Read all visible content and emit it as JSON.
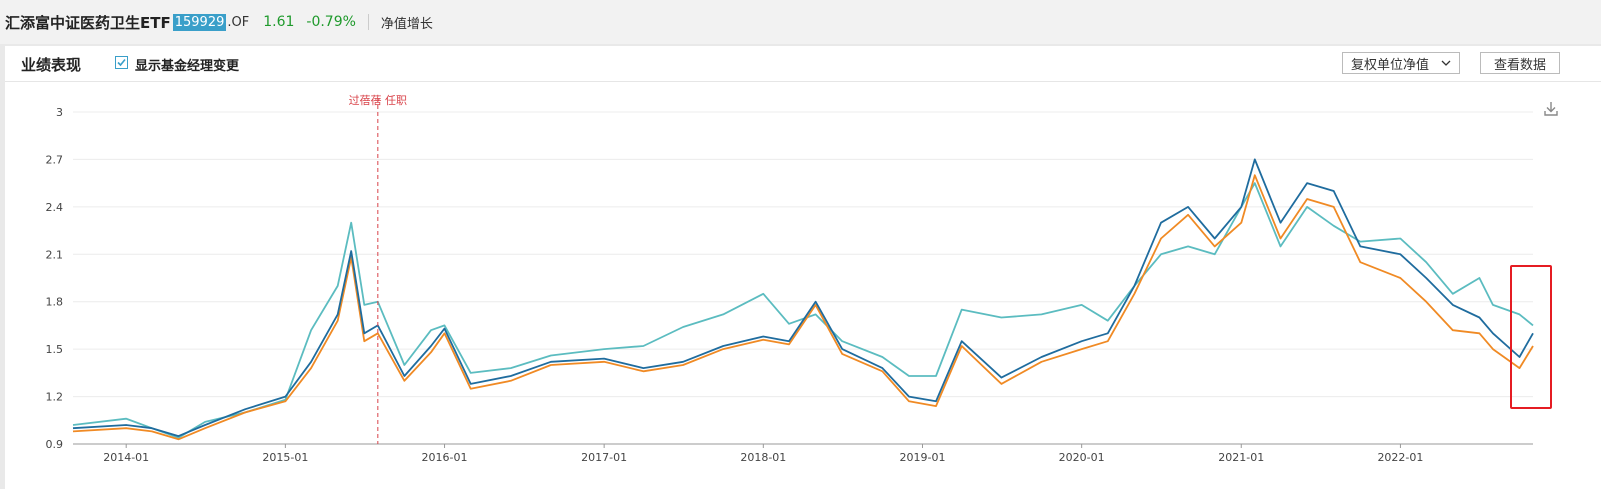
{
  "header": {
    "fund_name": "汇添富中证医药卫生ETF",
    "fund_code": "159929",
    "fund_suffix": ".OF",
    "nav": "1.61",
    "change": "-0.79%",
    "growth_label": "净值增长"
  },
  "panel": {
    "title": "业绩表现",
    "checkbox_label": "显示基金经理变更",
    "checkbox_checked": true,
    "select_value": "复权单位净值",
    "view_data_label": "查看数据"
  },
  "colors": {
    "fund": "#1f6c9e",
    "index": "#f08a24",
    "benchmark": "#5bbcc0",
    "manager_line": "#d9434a",
    "highlight": "#e51c23"
  },
  "chart_data": {
    "type": "line",
    "ylim": [
      0.9,
      3.0
    ],
    "yticks": [
      "0.9",
      "1.2",
      "1.5",
      "1.8",
      "2.1",
      "2.4",
      "2.7",
      "3"
    ],
    "xticks": [
      "2014-01",
      "2015-01",
      "2016-01",
      "2017-01",
      "2018-01",
      "2019-01",
      "2020-01",
      "2021-01",
      "2022-01"
    ],
    "x": [
      "2013-09",
      "2014-01",
      "2014-03",
      "2014-05",
      "2014-07",
      "2014-10",
      "2015-01",
      "2015-03",
      "2015-05",
      "2015-06",
      "2015-07",
      "2015-08",
      "2015-10",
      "2015-12",
      "2016-01",
      "2016-03",
      "2016-06",
      "2016-09",
      "2017-01",
      "2017-04",
      "2017-07",
      "2017-10",
      "2018-01",
      "2018-03",
      "2018-05",
      "2018-07",
      "2018-10",
      "2018-12",
      "2019-02",
      "2019-04",
      "2019-07",
      "2019-10",
      "2020-01",
      "2020-03",
      "2020-05",
      "2020-07",
      "2020-09",
      "2020-11",
      "2021-01",
      "2021-02",
      "2021-04",
      "2021-06",
      "2021-08",
      "2021-10",
      "2022-01",
      "2022-03",
      "2022-05",
      "2022-07",
      "2022-08",
      "2022-10",
      "2022-11"
    ],
    "series": [
      {
        "key": "fund",
        "values": [
          1.0,
          1.02,
          1.0,
          0.95,
          1.02,
          1.12,
          1.2,
          1.42,
          1.72,
          2.12,
          1.6,
          1.65,
          1.33,
          1.52,
          1.63,
          1.28,
          1.33,
          1.42,
          1.44,
          1.38,
          1.42,
          1.52,
          1.58,
          1.55,
          1.8,
          1.5,
          1.38,
          1.2,
          1.17,
          1.55,
          1.32,
          1.45,
          1.55,
          1.6,
          1.9,
          2.3,
          2.4,
          2.2,
          2.4,
          2.7,
          2.3,
          2.55,
          2.5,
          2.15,
          2.1,
          1.95,
          1.78,
          1.7,
          1.6,
          1.45,
          1.6
        ]
      },
      {
        "key": "index",
        "values": [
          0.98,
          1.0,
          0.98,
          0.93,
          1.0,
          1.1,
          1.17,
          1.38,
          1.68,
          2.08,
          1.55,
          1.6,
          1.3,
          1.48,
          1.6,
          1.25,
          1.3,
          1.4,
          1.42,
          1.36,
          1.4,
          1.5,
          1.56,
          1.53,
          1.78,
          1.47,
          1.36,
          1.17,
          1.14,
          1.52,
          1.28,
          1.42,
          1.5,
          1.55,
          1.85,
          2.2,
          2.35,
          2.15,
          2.3,
          2.6,
          2.2,
          2.45,
          2.4,
          2.05,
          1.95,
          1.8,
          1.62,
          1.6,
          1.5,
          1.38,
          1.52
        ]
      },
      {
        "key": "benchmark",
        "values": [
          1.02,
          1.06,
          1.0,
          0.94,
          1.04,
          1.1,
          1.18,
          1.62,
          1.9,
          2.3,
          1.78,
          1.8,
          1.4,
          1.62,
          1.65,
          1.35,
          1.38,
          1.46,
          1.5,
          1.52,
          1.64,
          1.72,
          1.85,
          1.66,
          1.72,
          1.55,
          1.45,
          1.33,
          1.33,
          1.75,
          1.7,
          1.72,
          1.78,
          1.68,
          1.9,
          2.1,
          2.15,
          2.1,
          2.4,
          2.55,
          2.15,
          2.4,
          2.28,
          2.18,
          2.2,
          2.05,
          1.85,
          1.95,
          1.78,
          1.72,
          1.65
        ]
      }
    ],
    "manager_change": {
      "date": "2015-08",
      "label": "过蓓蓓 任职"
    }
  }
}
